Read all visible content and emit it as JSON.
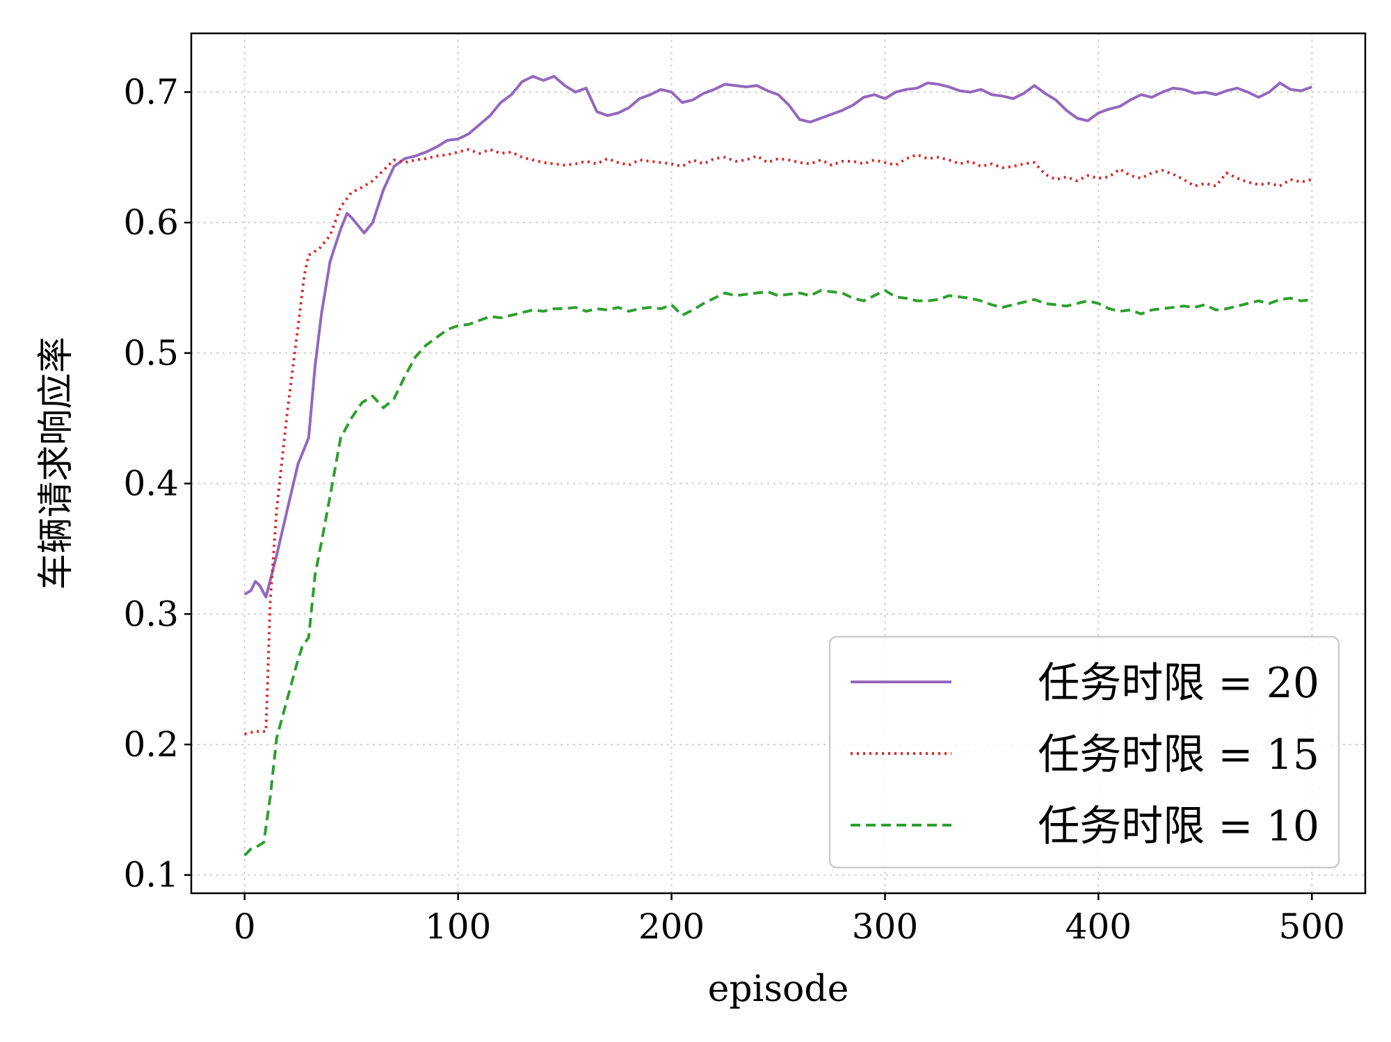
{
  "chart_data": {
    "type": "line",
    "xlabel": "episode",
    "ylabel": "车辆请求响应率",
    "xlim": [
      -25,
      525
    ],
    "ylim": [
      0.086,
      0.745
    ],
    "xticks": [
      0,
      100,
      200,
      300,
      400,
      500
    ],
    "yticks": [
      0.1,
      0.2,
      0.3,
      0.4,
      0.5,
      0.6,
      0.7
    ],
    "xtick_labels": [
      "0",
      "100",
      "200",
      "300",
      "400",
      "500"
    ],
    "ytick_labels": [
      "0.1",
      "0.2",
      "0.3",
      "0.4",
      "0.5",
      "0.6",
      "0.7"
    ],
    "grid": true,
    "legend_position": "lower-right",
    "series": [
      {
        "name": "任务时限 = 20",
        "color": "#9467bd",
        "dash": "solid",
        "x": [
          0,
          3,
          5,
          7,
          10,
          15,
          20,
          25,
          30,
          33,
          36,
          40,
          45,
          48,
          50,
          53,
          56,
          60,
          65,
          70,
          75,
          80,
          85,
          90,
          95,
          100,
          105,
          110,
          115,
          120,
          125,
          130,
          135,
          140,
          145,
          150,
          155,
          160,
          165,
          170,
          175,
          180,
          185,
          190,
          195,
          200,
          205,
          210,
          215,
          220,
          225,
          230,
          235,
          240,
          245,
          250,
          255,
          260,
          265,
          270,
          275,
          280,
          285,
          290,
          295,
          300,
          305,
          310,
          315,
          320,
          325,
          330,
          335,
          340,
          345,
          350,
          355,
          360,
          365,
          370,
          375,
          380,
          385,
          390,
          395,
          400,
          405,
          410,
          415,
          420,
          425,
          430,
          435,
          440,
          445,
          450,
          455,
          460,
          465,
          470,
          475,
          480,
          485,
          490,
          495,
          500
        ],
        "y": [
          0.315,
          0.318,
          0.325,
          0.322,
          0.313,
          0.345,
          0.38,
          0.415,
          0.435,
          0.49,
          0.53,
          0.57,
          0.595,
          0.607,
          0.604,
          0.598,
          0.592,
          0.6,
          0.625,
          0.643,
          0.649,
          0.651,
          0.654,
          0.658,
          0.663,
          0.664,
          0.668,
          0.675,
          0.682,
          0.692,
          0.698,
          0.708,
          0.712,
          0.709,
          0.712,
          0.705,
          0.7,
          0.703,
          0.685,
          0.682,
          0.684,
          0.688,
          0.695,
          0.698,
          0.702,
          0.7,
          0.692,
          0.694,
          0.699,
          0.702,
          0.706,
          0.705,
          0.704,
          0.705,
          0.701,
          0.698,
          0.69,
          0.679,
          0.677,
          0.68,
          0.683,
          0.686,
          0.69,
          0.696,
          0.698,
          0.695,
          0.7,
          0.702,
          0.703,
          0.707,
          0.706,
          0.704,
          0.701,
          0.7,
          0.702,
          0.698,
          0.697,
          0.695,
          0.699,
          0.705,
          0.699,
          0.694,
          0.686,
          0.68,
          0.678,
          0.684,
          0.687,
          0.689,
          0.694,
          0.698,
          0.696,
          0.7,
          0.703,
          0.702,
          0.699,
          0.7,
          0.698,
          0.701,
          0.703,
          0.7,
          0.696,
          0.7,
          0.707,
          0.702,
          0.701,
          0.704
        ]
      },
      {
        "name": "任务时限 = 15",
        "color": "#d62728",
        "dash": "dotted",
        "x": [
          0,
          5,
          10,
          12,
          15,
          20,
          25,
          28,
          30,
          35,
          40,
          45,
          50,
          55,
          60,
          65,
          70,
          75,
          80,
          85,
          90,
          95,
          100,
          105,
          110,
          115,
          120,
          125,
          130,
          135,
          140,
          145,
          150,
          155,
          160,
          165,
          170,
          175,
          180,
          185,
          190,
          195,
          200,
          205,
          210,
          215,
          220,
          225,
          230,
          235,
          240,
          245,
          250,
          255,
          260,
          265,
          270,
          275,
          280,
          285,
          290,
          295,
          300,
          305,
          310,
          315,
          320,
          325,
          330,
          335,
          340,
          345,
          350,
          355,
          360,
          365,
          370,
          375,
          380,
          385,
          390,
          395,
          400,
          405,
          410,
          415,
          420,
          425,
          430,
          435,
          440,
          445,
          450,
          455,
          460,
          465,
          470,
          475,
          480,
          485,
          490,
          495,
          500
        ],
        "y": [
          0.208,
          0.21,
          0.21,
          0.31,
          0.38,
          0.455,
          0.52,
          0.56,
          0.575,
          0.58,
          0.59,
          0.612,
          0.623,
          0.627,
          0.632,
          0.64,
          0.648,
          0.646,
          0.648,
          0.649,
          0.651,
          0.652,
          0.654,
          0.656,
          0.653,
          0.656,
          0.653,
          0.654,
          0.65,
          0.648,
          0.646,
          0.645,
          0.644,
          0.645,
          0.647,
          0.645,
          0.649,
          0.646,
          0.644,
          0.648,
          0.647,
          0.646,
          0.645,
          0.643,
          0.648,
          0.645,
          0.649,
          0.65,
          0.647,
          0.648,
          0.651,
          0.646,
          0.649,
          0.648,
          0.646,
          0.645,
          0.648,
          0.644,
          0.647,
          0.647,
          0.645,
          0.648,
          0.646,
          0.644,
          0.649,
          0.652,
          0.649,
          0.65,
          0.648,
          0.645,
          0.647,
          0.643,
          0.645,
          0.642,
          0.643,
          0.645,
          0.646,
          0.637,
          0.633,
          0.635,
          0.632,
          0.636,
          0.634,
          0.635,
          0.641,
          0.636,
          0.634,
          0.638,
          0.64,
          0.637,
          0.633,
          0.628,
          0.63,
          0.628,
          0.638,
          0.634,
          0.631,
          0.629,
          0.63,
          0.628,
          0.633,
          0.631,
          0.633
        ]
      },
      {
        "name": "任务时限 = 10",
        "color": "#2ca02c",
        "dash": "dashed",
        "x": [
          0,
          3,
          6,
          9,
          12,
          15,
          20,
          25,
          27,
          30,
          33,
          36,
          40,
          45,
          50,
          55,
          60,
          65,
          70,
          75,
          80,
          85,
          90,
          95,
          100,
          105,
          110,
          115,
          120,
          125,
          130,
          135,
          140,
          145,
          150,
          155,
          160,
          165,
          170,
          175,
          180,
          185,
          190,
          195,
          200,
          205,
          210,
          215,
          220,
          225,
          230,
          235,
          240,
          245,
          250,
          255,
          260,
          265,
          270,
          275,
          280,
          285,
          290,
          295,
          300,
          305,
          310,
          315,
          320,
          325,
          330,
          335,
          340,
          345,
          350,
          355,
          360,
          365,
          370,
          375,
          380,
          385,
          390,
          395,
          400,
          405,
          410,
          415,
          420,
          425,
          430,
          435,
          440,
          445,
          450,
          455,
          460,
          465,
          470,
          475,
          480,
          485,
          490,
          495,
          500
        ],
        "y": [
          0.115,
          0.12,
          0.122,
          0.125,
          0.16,
          0.205,
          0.235,
          0.265,
          0.275,
          0.282,
          0.33,
          0.355,
          0.39,
          0.435,
          0.45,
          0.462,
          0.467,
          0.458,
          0.465,
          0.482,
          0.497,
          0.506,
          0.512,
          0.518,
          0.521,
          0.522,
          0.525,
          0.528,
          0.527,
          0.529,
          0.531,
          0.533,
          0.532,
          0.534,
          0.534,
          0.535,
          0.532,
          0.534,
          0.533,
          0.535,
          0.532,
          0.534,
          0.535,
          0.534,
          0.537,
          0.529,
          0.533,
          0.538,
          0.542,
          0.546,
          0.544,
          0.545,
          0.546,
          0.547,
          0.544,
          0.545,
          0.546,
          0.544,
          0.548,
          0.547,
          0.546,
          0.542,
          0.54,
          0.544,
          0.548,
          0.543,
          0.542,
          0.54,
          0.54,
          0.541,
          0.544,
          0.543,
          0.542,
          0.54,
          0.537,
          0.535,
          0.537,
          0.539,
          0.541,
          0.538,
          0.537,
          0.536,
          0.538,
          0.54,
          0.538,
          0.534,
          0.532,
          0.533,
          0.53,
          0.533,
          0.534,
          0.535,
          0.536,
          0.535,
          0.537,
          0.533,
          0.534,
          0.536,
          0.538,
          0.54,
          0.538,
          0.541,
          0.542,
          0.54,
          0.541
        ]
      }
    ]
  }
}
